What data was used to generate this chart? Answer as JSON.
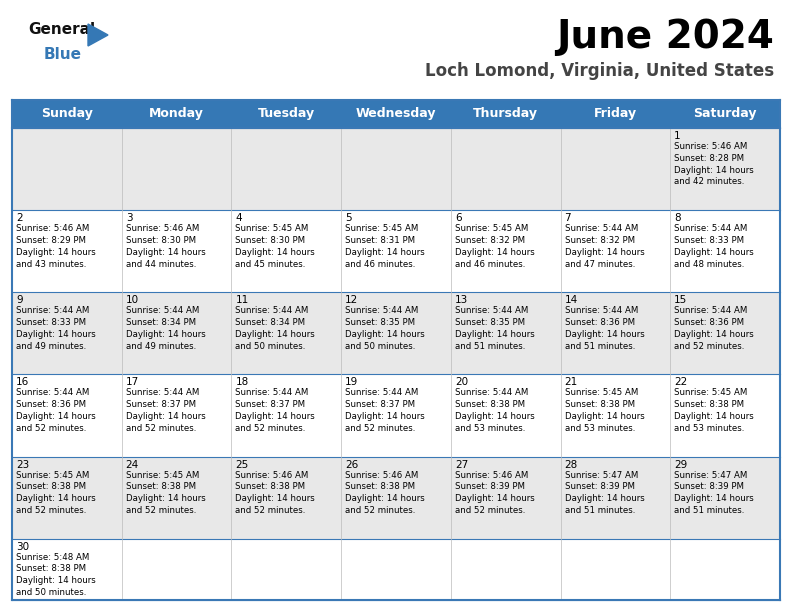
{
  "title": "June 2024",
  "subtitle": "Loch Lomond, Virginia, United States",
  "days_of_week": [
    "Sunday",
    "Monday",
    "Tuesday",
    "Wednesday",
    "Thursday",
    "Friday",
    "Saturday"
  ],
  "header_bg": "#3578b5",
  "header_text": "#ffffff",
  "row0_bg": "#e8e8e8",
  "row1_bg": "#ffffff",
  "row2_bg": "#e8e8e8",
  "row3_bg": "#ffffff",
  "row4_bg": "#e8e8e8",
  "row5_bg": "#ffffff",
  "cell_border": "#3a78b5",
  "calendar": [
    [
      null,
      null,
      null,
      null,
      null,
      null,
      {
        "day": "1",
        "sunrise": "5:46 AM",
        "sunset": "8:28 PM",
        "daylight": "14 hours\nand 42 minutes."
      }
    ],
    [
      {
        "day": "2",
        "sunrise": "5:46 AM",
        "sunset": "8:29 PM",
        "daylight": "14 hours\nand 43 minutes."
      },
      {
        "day": "3",
        "sunrise": "5:46 AM",
        "sunset": "8:30 PM",
        "daylight": "14 hours\nand 44 minutes."
      },
      {
        "day": "4",
        "sunrise": "5:45 AM",
        "sunset": "8:30 PM",
        "daylight": "14 hours\nand 45 minutes."
      },
      {
        "day": "5",
        "sunrise": "5:45 AM",
        "sunset": "8:31 PM",
        "daylight": "14 hours\nand 46 minutes."
      },
      {
        "day": "6",
        "sunrise": "5:45 AM",
        "sunset": "8:32 PM",
        "daylight": "14 hours\nand 46 minutes."
      },
      {
        "day": "7",
        "sunrise": "5:44 AM",
        "sunset": "8:32 PM",
        "daylight": "14 hours\nand 47 minutes."
      },
      {
        "day": "8",
        "sunrise": "5:44 AM",
        "sunset": "8:33 PM",
        "daylight": "14 hours\nand 48 minutes."
      }
    ],
    [
      {
        "day": "9",
        "sunrise": "5:44 AM",
        "sunset": "8:33 PM",
        "daylight": "14 hours\nand 49 minutes."
      },
      {
        "day": "10",
        "sunrise": "5:44 AM",
        "sunset": "8:34 PM",
        "daylight": "14 hours\nand 49 minutes."
      },
      {
        "day": "11",
        "sunrise": "5:44 AM",
        "sunset": "8:34 PM",
        "daylight": "14 hours\nand 50 minutes."
      },
      {
        "day": "12",
        "sunrise": "5:44 AM",
        "sunset": "8:35 PM",
        "daylight": "14 hours\nand 50 minutes."
      },
      {
        "day": "13",
        "sunrise": "5:44 AM",
        "sunset": "8:35 PM",
        "daylight": "14 hours\nand 51 minutes."
      },
      {
        "day": "14",
        "sunrise": "5:44 AM",
        "sunset": "8:36 PM",
        "daylight": "14 hours\nand 51 minutes."
      },
      {
        "day": "15",
        "sunrise": "5:44 AM",
        "sunset": "8:36 PM",
        "daylight": "14 hours\nand 52 minutes."
      }
    ],
    [
      {
        "day": "16",
        "sunrise": "5:44 AM",
        "sunset": "8:36 PM",
        "daylight": "14 hours\nand 52 minutes."
      },
      {
        "day": "17",
        "sunrise": "5:44 AM",
        "sunset": "8:37 PM",
        "daylight": "14 hours\nand 52 minutes."
      },
      {
        "day": "18",
        "sunrise": "5:44 AM",
        "sunset": "8:37 PM",
        "daylight": "14 hours\nand 52 minutes."
      },
      {
        "day": "19",
        "sunrise": "5:44 AM",
        "sunset": "8:37 PM",
        "daylight": "14 hours\nand 52 minutes."
      },
      {
        "day": "20",
        "sunrise": "5:44 AM",
        "sunset": "8:38 PM",
        "daylight": "14 hours\nand 53 minutes."
      },
      {
        "day": "21",
        "sunrise": "5:45 AM",
        "sunset": "8:38 PM",
        "daylight": "14 hours\nand 53 minutes."
      },
      {
        "day": "22",
        "sunrise": "5:45 AM",
        "sunset": "8:38 PM",
        "daylight": "14 hours\nand 53 minutes."
      }
    ],
    [
      {
        "day": "23",
        "sunrise": "5:45 AM",
        "sunset": "8:38 PM",
        "daylight": "14 hours\nand 52 minutes."
      },
      {
        "day": "24",
        "sunrise": "5:45 AM",
        "sunset": "8:38 PM",
        "daylight": "14 hours\nand 52 minutes."
      },
      {
        "day": "25",
        "sunrise": "5:46 AM",
        "sunset": "8:38 PM",
        "daylight": "14 hours\nand 52 minutes."
      },
      {
        "day": "26",
        "sunrise": "5:46 AM",
        "sunset": "8:38 PM",
        "daylight": "14 hours\nand 52 minutes."
      },
      {
        "day": "27",
        "sunrise": "5:46 AM",
        "sunset": "8:39 PM",
        "daylight": "14 hours\nand 52 minutes."
      },
      {
        "day": "28",
        "sunrise": "5:47 AM",
        "sunset": "8:39 PM",
        "daylight": "14 hours\nand 51 minutes."
      },
      {
        "day": "29",
        "sunrise": "5:47 AM",
        "sunset": "8:39 PM",
        "daylight": "14 hours\nand 51 minutes."
      }
    ],
    [
      {
        "day": "30",
        "sunrise": "5:48 AM",
        "sunset": "8:38 PM",
        "daylight": "14 hours\nand 50 minutes."
      },
      null,
      null,
      null,
      null,
      null,
      null
    ]
  ]
}
